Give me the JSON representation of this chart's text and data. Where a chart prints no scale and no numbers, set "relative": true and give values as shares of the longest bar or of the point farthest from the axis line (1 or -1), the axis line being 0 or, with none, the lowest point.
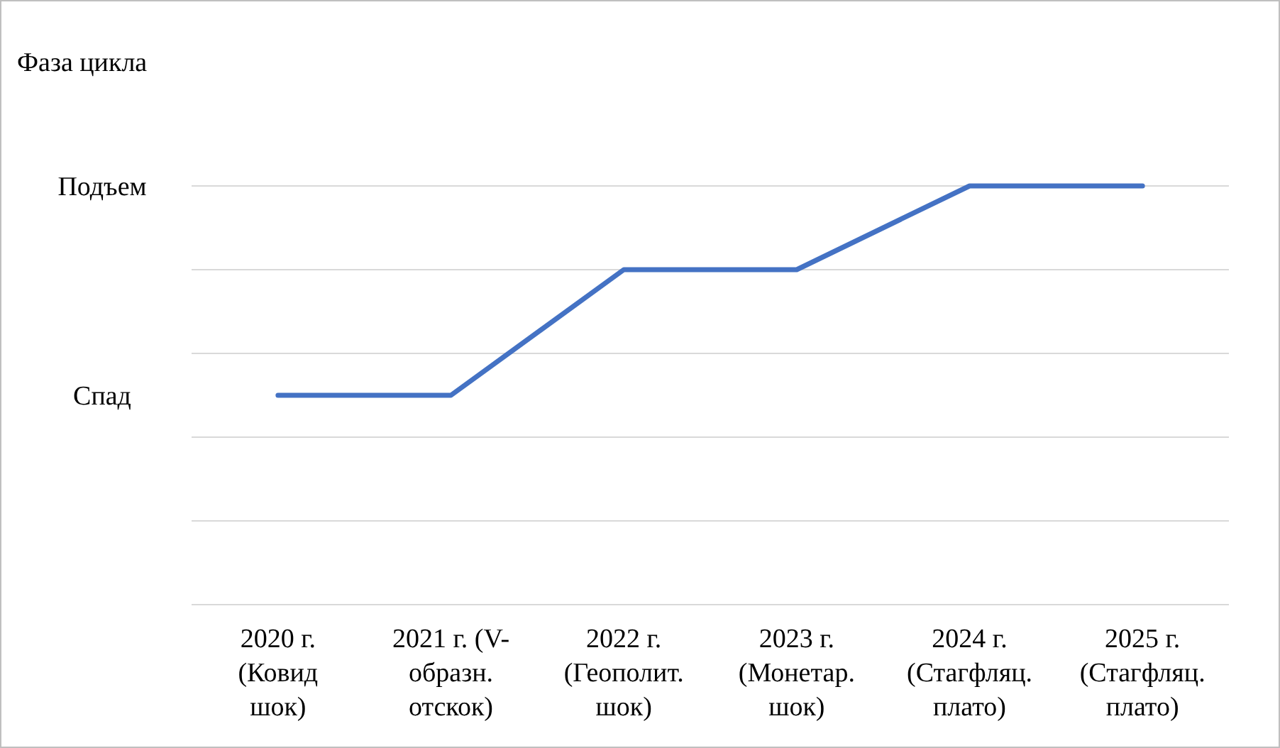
{
  "chart_data": {
    "type": "line",
    "ylabel": "Фаза цикла",
    "categories": [
      "2020 г.\n(Ковид\nшок)",
      "2021 г. (V-\nобразн.\nотскок)",
      "2022 г.\n(Геополит.\nшок)",
      "2023 г.\n(Монетар.\nшок)",
      "2024 г.\n(Стагфляц.\nплато)",
      "2025 г.\n(Стагфляц.\nплато)"
    ],
    "series": [
      {
        "color": "#4472c4",
        "values": [
          0.5,
          0.5,
          0.8,
          0.8,
          1,
          1
        ]
      }
    ],
    "relative": true,
    "annotations": [
      "Спад",
      "Подъем"
    ],
    "grid": "y",
    "line_style": "solid"
  }
}
